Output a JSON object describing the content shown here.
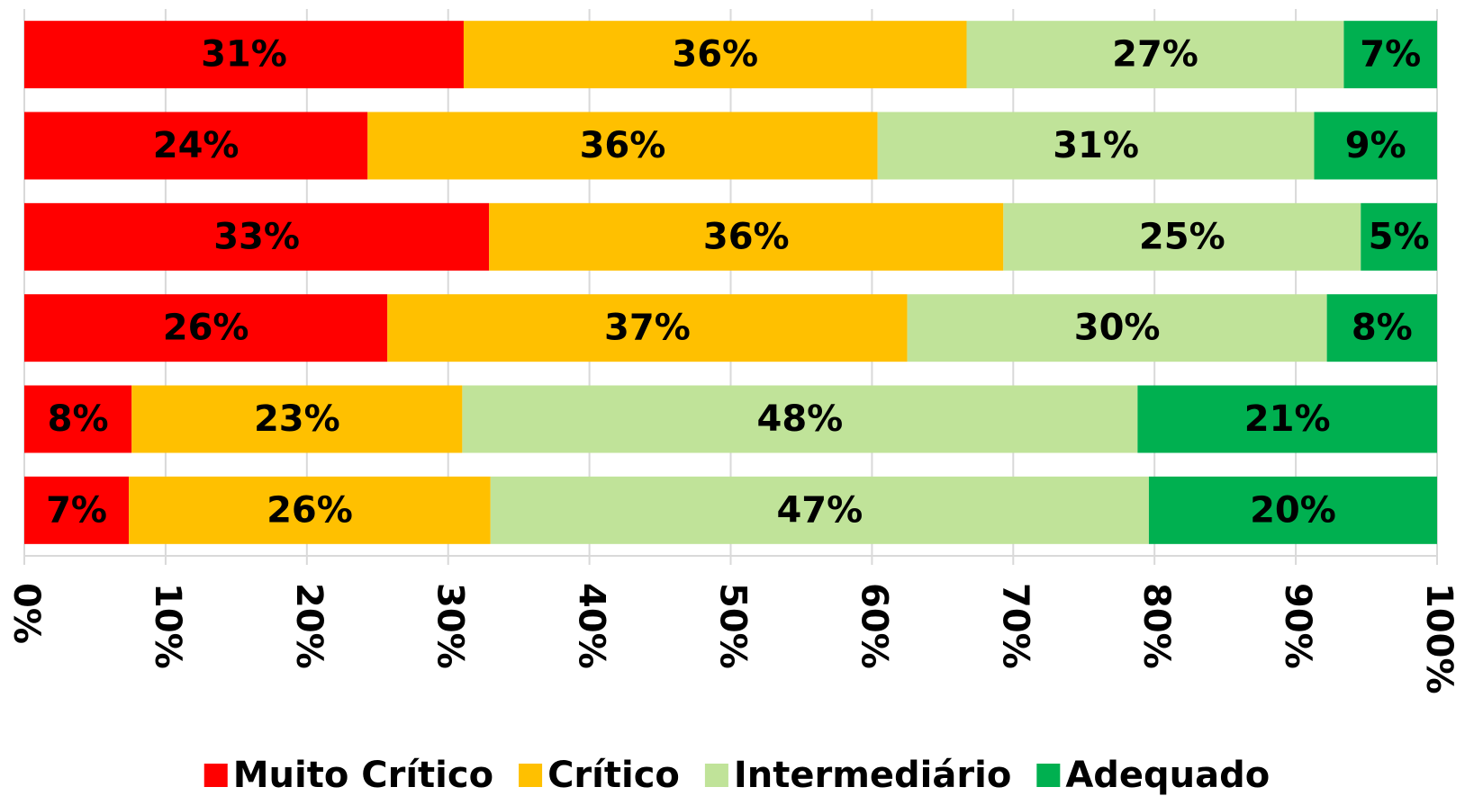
{
  "chart_data": {
    "type": "stacked_bar_horizontal",
    "categories": [
      null,
      null,
      null,
      null,
      null,
      null
    ],
    "series": [
      {
        "name": "Muito Crítico",
        "color": "#ff0000",
        "values": [
          31.1,
          24.3,
          32.9,
          25.7,
          7.6,
          7.4
        ],
        "value_labels": [
          "31%",
          "24%",
          "33%",
          "26%",
          "8%",
          "7%"
        ]
      },
      {
        "name": "Crítico",
        "color": "#ffc000",
        "values": [
          35.6,
          36.1,
          36.4,
          36.8,
          23.4,
          25.6
        ],
        "value_labels": [
          "36%",
          "36%",
          "36%",
          "37%",
          "23%",
          "26%"
        ]
      },
      {
        "name": "Intermediário",
        "color": "#c0e399",
        "values": [
          26.7,
          30.9,
          25.3,
          29.7,
          47.8,
          46.6
        ],
        "value_labels": [
          "27%",
          "31%",
          "25%",
          "30%",
          "48%",
          "47%"
        ]
      },
      {
        "name": "Adequado",
        "color": "#00b050",
        "values": [
          6.6,
          8.7,
          5.4,
          7.8,
          21.2,
          20.4
        ],
        "value_labels": [
          "7%",
          "9%",
          "5%",
          "8%",
          "21%",
          "20%"
        ]
      }
    ],
    "xlim": [
      0,
      100
    ],
    "xticks": [
      {
        "value": 0,
        "label": "0%"
      },
      {
        "value": 10,
        "label": "10%"
      },
      {
        "value": 20,
        "label": "20%"
      },
      {
        "value": 30,
        "label": "30%"
      },
      {
        "value": 40,
        "label": "40%"
      },
      {
        "value": 50,
        "label": "50%"
      },
      {
        "value": 60,
        "label": "60%"
      },
      {
        "value": 70,
        "label": "70%"
      },
      {
        "value": 80,
        "label": "80%"
      },
      {
        "value": 90,
        "label": "90%"
      },
      {
        "value": 100,
        "label": "100%"
      }
    ],
    "grid": true,
    "legend": "bottom"
  }
}
